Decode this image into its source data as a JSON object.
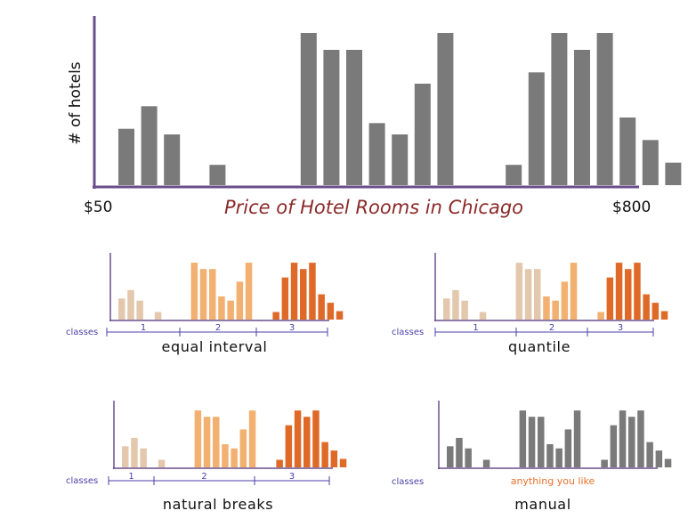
{
  "chart_data": {
    "type": "bar",
    "title": "Price of Hotel Rooms in Chicago",
    "ylabel": "# of hotels",
    "x_min_label": "$50",
    "x_max_label": "$800",
    "values": [
      5,
      7,
      4.5,
      0,
      1.8,
      0,
      0,
      0,
      13.5,
      12,
      12,
      5.5,
      4.5,
      9,
      13.5,
      0,
      0,
      1.8,
      10,
      13.5,
      12,
      13.5,
      6,
      4,
      2
    ],
    "ylim": [
      0,
      15
    ],
    "colors": {
      "axis": "#6a4f8c",
      "gray": "#7a7a7a",
      "class1": "#e3c8ad",
      "class2": "#f2b071",
      "class3": "#df6a28",
      "class_ticks": "#4b3fa8"
    },
    "classes_label": "classes",
    "panels": [
      {
        "label": "equal interval",
        "class_labels": [
          "1",
          "2",
          "3"
        ],
        "bar_classes": [
          1,
          1,
          1,
          0,
          1,
          0,
          0,
          1,
          2,
          2,
          2,
          2,
          2,
          2,
          2,
          0,
          0,
          3,
          3,
          3,
          3,
          3,
          3,
          3,
          3
        ]
      },
      {
        "label": "quantile",
        "class_labels": [
          "1",
          "2",
          "3"
        ],
        "bar_classes": [
          1,
          1,
          1,
          0,
          1,
          0,
          0,
          1,
          1,
          1,
          1,
          2,
          2,
          2,
          2,
          0,
          0,
          2,
          3,
          3,
          3,
          3,
          3,
          3,
          3
        ]
      },
      {
        "label": "natural breaks",
        "class_labels": [
          "1",
          "2",
          "3"
        ],
        "bar_classes": [
          1,
          1,
          1,
          0,
          1,
          0,
          0,
          2,
          2,
          2,
          2,
          2,
          2,
          2,
          2,
          0,
          0,
          3,
          3,
          3,
          3,
          3,
          3,
          3,
          3
        ]
      },
      {
        "label": "manual",
        "note": "anything you like",
        "bar_classes": [
          0,
          0,
          0,
          0,
          0,
          0,
          0,
          0,
          0,
          0,
          0,
          0,
          0,
          0,
          0,
          0,
          0,
          0,
          0,
          0,
          0,
          0,
          0,
          0,
          0
        ]
      }
    ]
  }
}
